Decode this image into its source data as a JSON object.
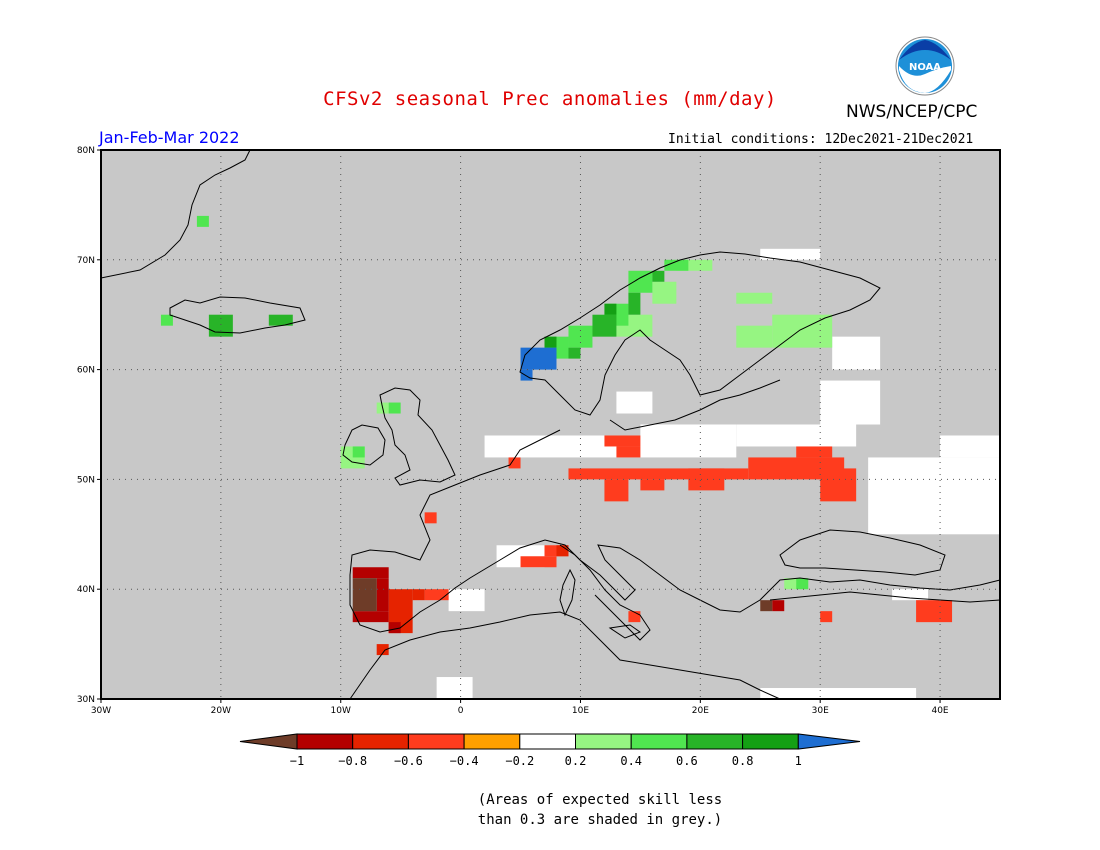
{
  "header": {
    "title": "CFSv2 seasonal Prec anomalies (mm/day)",
    "season": "Jan-Feb-Mar 2022",
    "initial_conditions": "Initial conditions: 12Dec2021-21Dec2021",
    "organization": "NWS/NCEP/CPC",
    "logo_text": "NOAA"
  },
  "map": {
    "lon_range": [
      -30,
      45
    ],
    "lat_range": [
      30,
      80
    ],
    "lon_ticks": [
      {
        "value": -30,
        "label": "30W"
      },
      {
        "value": -20,
        "label": "20W"
      },
      {
        "value": -10,
        "label": "10W"
      },
      {
        "value": 0,
        "label": "0"
      },
      {
        "value": 10,
        "label": "10E"
      },
      {
        "value": 20,
        "label": "20E"
      },
      {
        "value": 30,
        "label": "30E"
      },
      {
        "value": 40,
        "label": "40E"
      }
    ],
    "lat_ticks": [
      {
        "value": 30,
        "label": "30N"
      },
      {
        "value": 40,
        "label": "40N"
      },
      {
        "value": 50,
        "label": "50N"
      },
      {
        "value": 60,
        "label": "60N"
      },
      {
        "value": 70,
        "label": "70N"
      },
      {
        "value": 80,
        "label": "80N"
      }
    ],
    "background_color": "#c8c8c8",
    "land_outline_color": "#000000",
    "cells": [
      {
        "lon": 2,
        "lat": 52,
        "w": 13,
        "h": 2,
        "level": "white"
      },
      {
        "lon": 15,
        "lat": 52,
        "w": 8,
        "h": 3,
        "level": "white"
      },
      {
        "lon": 23,
        "lat": 53,
        "w": 10,
        "h": 2,
        "level": "white"
      },
      {
        "lon": 30,
        "lat": 55,
        "w": 5,
        "h": 4,
        "level": "white"
      },
      {
        "lon": 34,
        "lat": 45,
        "w": 11,
        "h": 7,
        "level": "white"
      },
      {
        "lon": 40,
        "lat": 52,
        "w": 5,
        "h": 2,
        "level": "white"
      },
      {
        "lon": 13,
        "lat": 56,
        "w": 3,
        "h": 2,
        "level": "white"
      },
      {
        "lon": 25,
        "lat": 70,
        "w": 5,
        "h": 1,
        "level": "white"
      },
      {
        "lon": 31,
        "lat": 60,
        "w": 4,
        "h": 3,
        "level": "white"
      },
      {
        "lon": 3,
        "lat": 42,
        "w": 4,
        "h": 2,
        "level": "white"
      },
      {
        "lon": -1,
        "lat": 38,
        "w": 3,
        "h": 2,
        "level": "white"
      },
      {
        "lon": 25,
        "lat": 30,
        "w": 13,
        "h": 1,
        "level": "white"
      },
      {
        "lon": 36,
        "lat": 39,
        "w": 3,
        "h": 1,
        "level": "white"
      },
      {
        "lon": -2,
        "lat": 30,
        "w": 3,
        "h": 2,
        "level": "white"
      },
      {
        "lon": 9,
        "lat": 50,
        "w": 15,
        "h": 1,
        "level": "-0.4"
      },
      {
        "lon": 12,
        "lat": 48,
        "w": 2,
        "h": 2,
        "level": "-0.4"
      },
      {
        "lon": 19,
        "lat": 49,
        "w": 3,
        "h": 2,
        "level": "-0.4"
      },
      {
        "lon": 15,
        "lat": 49,
        "w": 2,
        "h": 1,
        "level": "-0.4"
      },
      {
        "lon": 24,
        "lat": 50,
        "w": 8,
        "h": 2,
        "level": "-0.4"
      },
      {
        "lon": 28,
        "lat": 52,
        "w": 3,
        "h": 1,
        "level": "-0.4"
      },
      {
        "lon": 30,
        "lat": 48,
        "w": 3,
        "h": 3,
        "level": "-0.4"
      },
      {
        "lon": 12,
        "lat": 53,
        "w": 3,
        "h": 1,
        "level": "-0.4"
      },
      {
        "lon": 13,
        "lat": 52,
        "w": 2,
        "h": 1,
        "level": "-0.4"
      },
      {
        "lon": 5,
        "lat": 42,
        "w": 3,
        "h": 1,
        "level": "-0.4"
      },
      {
        "lon": 7,
        "lat": 43,
        "w": 2,
        "h": 1,
        "level": "-0.4"
      },
      {
        "lon": 38,
        "lat": 37,
        "w": 3,
        "h": 2,
        "level": "-0.4"
      },
      {
        "lon": -3,
        "lat": 39,
        "w": 2,
        "h": 1,
        "level": "-0.4"
      },
      {
        "lon": 14,
        "lat": 37,
        "w": 1,
        "h": 1,
        "level": "-0.4"
      },
      {
        "lon": 4,
        "lat": 51,
        "w": 1,
        "h": 1,
        "level": "-0.4"
      },
      {
        "lon": -3,
        "lat": 46,
        "w": 1,
        "h": 1,
        "level": "-0.4"
      },
      {
        "lon": 30,
        "lat": 37,
        "w": 1,
        "h": 1,
        "level": "-0.4"
      },
      {
        "lon": -6,
        "lat": 36,
        "w": 2,
        "h": 4,
        "level": "-0.6"
      },
      {
        "lon": -4,
        "lat": 39,
        "w": 1,
        "h": 1,
        "level": "-0.6"
      },
      {
        "lon": 8,
        "lat": 43,
        "w": 1,
        "h": 1,
        "level": "-0.6"
      },
      {
        "lon": -7,
        "lat": 34,
        "w": 1,
        "h": 1,
        "level": "-0.6"
      },
      {
        "lon": -9,
        "lat": 41,
        "w": 3,
        "h": 1,
        "level": "-0.8"
      },
      {
        "lon": -9,
        "lat": 37,
        "w": 3,
        "h": 1,
        "level": "-0.8"
      },
      {
        "lon": -7,
        "lat": 38,
        "w": 1,
        "h": 3,
        "level": "-0.8"
      },
      {
        "lon": -6,
        "lat": 36,
        "w": 1,
        "h": 1,
        "level": "-0.8"
      },
      {
        "lon": 26,
        "lat": 38,
        "w": 1,
        "h": 1,
        "level": "-0.8"
      },
      {
        "lon": -9,
        "lat": 38,
        "w": 2,
        "h": 3,
        "level": "-1"
      },
      {
        "lon": 25,
        "lat": 38,
        "w": 1,
        "h": 1,
        "level": "-1"
      },
      {
        "lon": 23,
        "lat": 66,
        "w": 3,
        "h": 1,
        "level": "0.2"
      },
      {
        "lon": 26,
        "lat": 62,
        "w": 5,
        "h": 3,
        "level": "0.2"
      },
      {
        "lon": 23,
        "lat": 62,
        "w": 3,
        "h": 2,
        "level": "0.2"
      },
      {
        "lon": 13,
        "lat": 63,
        "w": 3,
        "h": 2,
        "level": "0.2"
      },
      {
        "lon": 16,
        "lat": 66,
        "w": 2,
        "h": 2,
        "level": "0.2"
      },
      {
        "lon": 18,
        "lat": 69,
        "w": 3,
        "h": 1,
        "level": "0.2"
      },
      {
        "lon": -10,
        "lat": 51,
        "w": 2,
        "h": 2,
        "level": "0.2"
      },
      {
        "lon": -7,
        "lat": 56,
        "w": 1,
        "h": 1,
        "level": "0.2"
      },
      {
        "lon": 27,
        "lat": 40,
        "w": 2,
        "h": 1,
        "level": "0.2"
      },
      {
        "lon": -25,
        "lat": 64,
        "w": 1,
        "h": 1,
        "level": "0.4"
      },
      {
        "lon": -22,
        "lat": 73,
        "w": 1,
        "h": 1,
        "level": "0.4"
      },
      {
        "lon": 7,
        "lat": 61,
        "w": 2,
        "h": 2,
        "level": "0.4"
      },
      {
        "lon": 9,
        "lat": 62,
        "w": 2,
        "h": 2,
        "level": "0.4"
      },
      {
        "lon": 12,
        "lat": 64,
        "w": 2,
        "h": 2,
        "level": "0.4"
      },
      {
        "lon": 14,
        "lat": 67,
        "w": 2,
        "h": 2,
        "level": "0.4"
      },
      {
        "lon": 17,
        "lat": 69,
        "w": 2,
        "h": 1,
        "level": "0.4"
      },
      {
        "lon": -9,
        "lat": 52,
        "w": 1,
        "h": 1,
        "level": "0.4"
      },
      {
        "lon": -6,
        "lat": 56,
        "w": 1,
        "h": 1,
        "level": "0.4"
      },
      {
        "lon": 28,
        "lat": 40,
        "w": 1,
        "h": 1,
        "level": "0.4"
      },
      {
        "lon": -21,
        "lat": 63,
        "w": 2,
        "h": 2,
        "level": "0.6"
      },
      {
        "lon": -16,
        "lat": 64,
        "w": 2,
        "h": 1,
        "level": "0.6"
      },
      {
        "lon": 9,
        "lat": 61,
        "w": 1,
        "h": 1,
        "level": "0.6"
      },
      {
        "lon": 11,
        "lat": 63,
        "w": 2,
        "h": 2,
        "level": "0.6"
      },
      {
        "lon": 14,
        "lat": 65,
        "w": 1,
        "h": 2,
        "level": "0.6"
      },
      {
        "lon": 16,
        "lat": 68,
        "w": 1,
        "h": 1,
        "level": "0.6"
      },
      {
        "lon": 7,
        "lat": 62,
        "w": 1,
        "h": 1,
        "level": "0.8"
      },
      {
        "lon": 12,
        "lat": 65,
        "w": 1,
        "h": 1,
        "level": "0.8"
      },
      {
        "lon": 5,
        "lat": 60,
        "w": 3,
        "h": 2,
        "level": "1"
      },
      {
        "lon": 5,
        "lat": 59,
        "w": 1,
        "h": 1,
        "level": "1"
      }
    ]
  },
  "colorbar": {
    "ticks": [
      "−1",
      "−0.8",
      "−0.6",
      "−0.4",
      "−0.2",
      "0.2",
      "0.4",
      "0.6",
      "0.8",
      "1"
    ],
    "levels": [
      {
        "key": "-1",
        "color": "#6e3c28"
      },
      {
        "key": "-0.8",
        "color": "#b40000"
      },
      {
        "key": "-0.6",
        "color": "#e62300"
      },
      {
        "key": "-0.4",
        "color": "#ff3c1e"
      },
      {
        "key": "-0.2",
        "color": "#ffa000"
      },
      {
        "key": "white",
        "color": "#ffffff"
      },
      {
        "key": "0.2",
        "color": "#96f582"
      },
      {
        "key": "0.4",
        "color": "#50e650"
      },
      {
        "key": "0.6",
        "color": "#28b428"
      },
      {
        "key": "0.8",
        "color": "#14a014"
      },
      {
        "key": "1",
        "color": "#1e6ed2"
      }
    ]
  },
  "note": {
    "line1": "(Areas of expected skill less",
    "line2": "than 0.3 are shaded in grey.)"
  }
}
